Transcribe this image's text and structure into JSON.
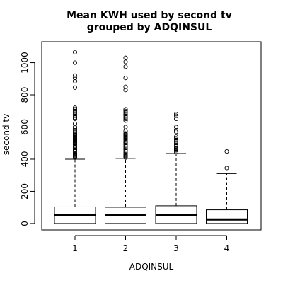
{
  "chart_data": {
    "type": "boxplot",
    "title_lines": [
      "Mean KWH used by second tv",
      "grouped by ADQINSUL"
    ],
    "xlabel": "ADQINSUL",
    "ylabel": "second tv",
    "ylim": [
      -40,
      1130
    ],
    "y_ticks": [
      0,
      200,
      400,
      600,
      800,
      1000
    ],
    "categories": [
      "1",
      "2",
      "3",
      "4"
    ],
    "grid": false,
    "boxes": [
      {
        "category": "1",
        "whisker_low": 0,
        "q1": 0,
        "median": 53,
        "q3": 103,
        "whisker_high": 400,
        "outliers": [
          410,
          415,
          420,
          425,
          430,
          435,
          440,
          450,
          455,
          460,
          470,
          475,
          480,
          490,
          495,
          500,
          505,
          510,
          515,
          520,
          525,
          530,
          535,
          540,
          545,
          550,
          555,
          560,
          570,
          580,
          590,
          600,
          620,
          650,
          660,
          670,
          680,
          690,
          700,
          710,
          720,
          845,
          885,
          905,
          920,
          1000,
          1065
        ]
      },
      {
        "category": "2",
        "whisker_low": 0,
        "q1": 0,
        "median": 53,
        "q3": 101,
        "whisker_high": 405,
        "outliers": [
          410,
          415,
          420,
          425,
          430,
          440,
          450,
          460,
          470,
          480,
          490,
          500,
          505,
          510,
          520,
          530,
          535,
          540,
          545,
          550,
          555,
          560,
          575,
          600,
          640,
          650,
          660,
          670,
          680,
          690,
          700,
          710,
          830,
          850,
          905,
          975,
          1005,
          1030
        ]
      },
      {
        "category": "3",
        "whisker_low": 0,
        "q1": 0,
        "median": 53,
        "q3": 110,
        "whisker_high": 435,
        "outliers": [
          445,
          455,
          460,
          465,
          470,
          480,
          490,
          500,
          510,
          520,
          530,
          540,
          570,
          580,
          600,
          650,
          670,
          680
        ]
      },
      {
        "category": "4",
        "whisker_low": 0,
        "q1": 0,
        "median": 25,
        "q3": 85,
        "whisker_high": 310,
        "outliers": [
          345,
          448
        ]
      }
    ]
  }
}
